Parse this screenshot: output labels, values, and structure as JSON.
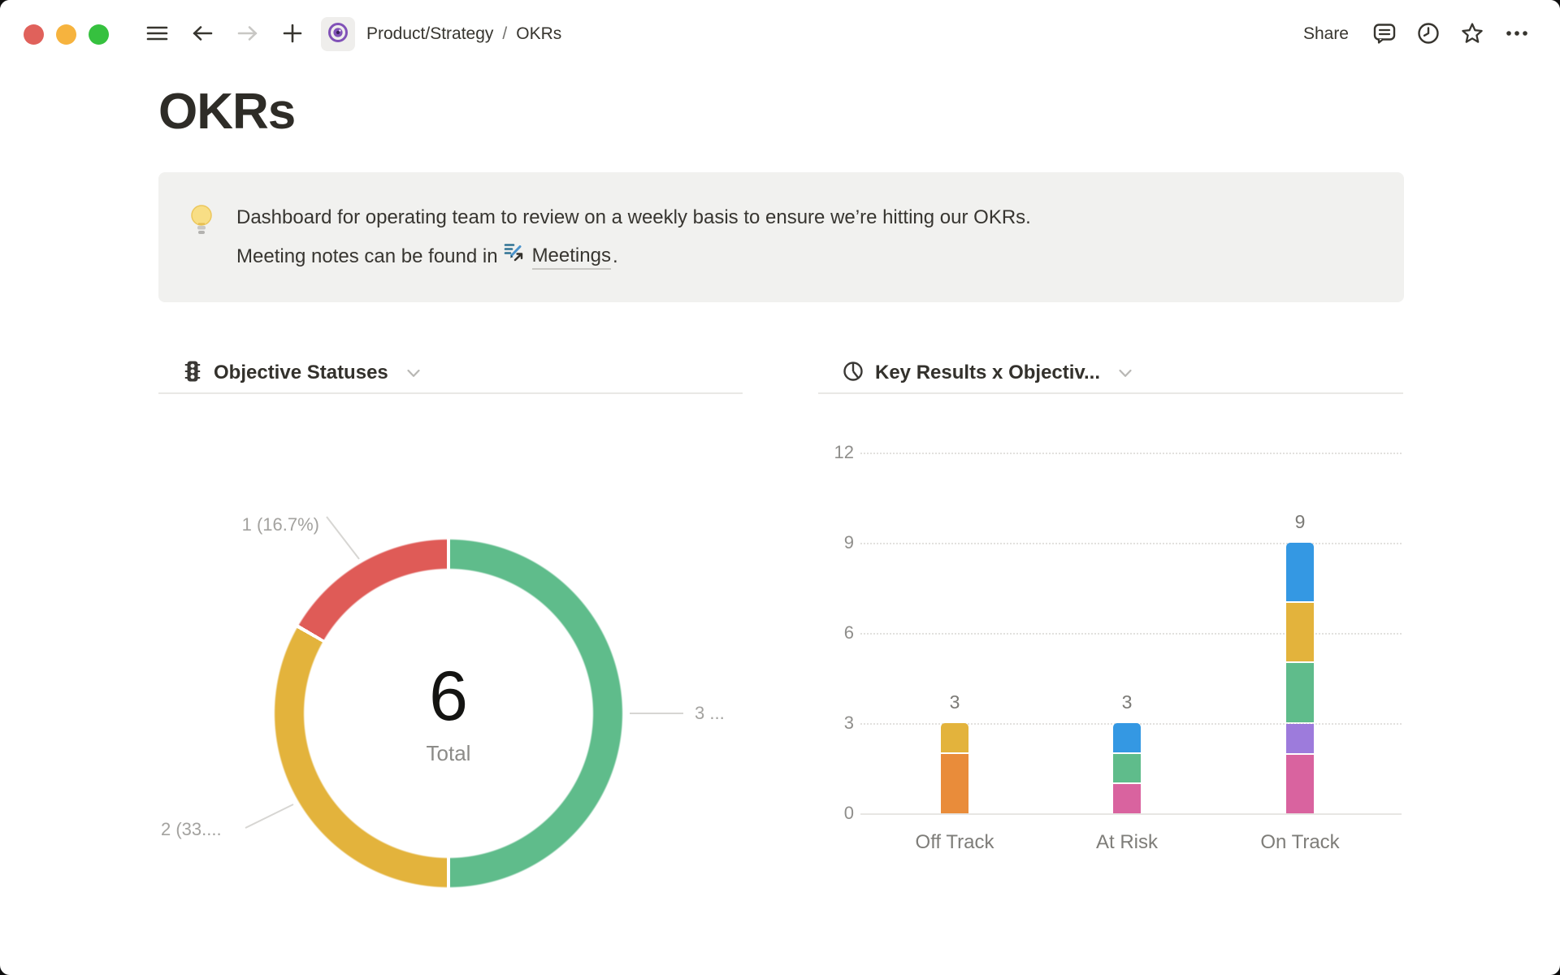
{
  "topbar": {
    "breadcrumb": {
      "parent": "Product/Strategy",
      "separator": "/",
      "current": "OKRs"
    },
    "share_label": "Share"
  },
  "page": {
    "title": "OKRs",
    "callout": {
      "icon": "lightbulb",
      "line1": "Dashboard for operating team to review on a weekly basis to ensure we’re hitting our OKRs.",
      "line2_prefix": "Meeting notes can be found in",
      "link_text": "Meetings",
      "line2_suffix": "."
    }
  },
  "colors": {
    "traffic_red": "#E0615B",
    "traffic_yellow": "#F6B33E",
    "traffic_green": "#36C13F",
    "accent_purple": "#8152B8",
    "gridline": "#E2E1DE"
  },
  "chart_data": [
    {
      "type": "pie",
      "donut": true,
      "title": "Objective Statuses",
      "header_icon": "traffic-light-icon",
      "total_value": "6",
      "total_label": "Total",
      "legend_position": "none",
      "slices": [
        {
          "label": "1 (16.7%)",
          "value": 1,
          "percent": 16.7,
          "color": "#DF5B57",
          "start_deg": 300,
          "end_deg": 360
        },
        {
          "label": "2 (33....",
          "value": 2,
          "percent": 33.3,
          "color": "#E3B33C",
          "start_deg": 180,
          "end_deg": 300
        },
        {
          "label": "3 ...",
          "value": 3,
          "percent": 50.0,
          "color": "#5FBC8B",
          "start_deg": 0,
          "end_deg": 180
        }
      ]
    },
    {
      "type": "bar",
      "stacked": true,
      "title": "Key Results x Objectiv...",
      "header_icon": "pie-chart-icon",
      "categories": [
        "Off Track",
        "At Risk",
        "On Track"
      ],
      "totals": [
        3,
        3,
        9
      ],
      "ylim": [
        0,
        12
      ],
      "y_ticks": [
        0,
        3,
        6,
        9,
        12
      ],
      "grid": "horizontal-dotted",
      "bars": [
        {
          "category": "Off Track",
          "segments": [
            {
              "color": "#E98C3A",
              "value": 2
            },
            {
              "color": "#E3B33C",
              "value": 1
            }
          ]
        },
        {
          "category": "At Risk",
          "segments": [
            {
              "color": "#D9639F",
              "value": 1
            },
            {
              "color": "#5FBC8B",
              "value": 1
            },
            {
              "color": "#3498E3",
              "value": 1
            }
          ]
        },
        {
          "category": "On Track",
          "segments": [
            {
              "color": "#D9639F",
              "value": 2
            },
            {
              "color": "#9D7BDC",
              "value": 1
            },
            {
              "color": "#5FBC8B",
              "value": 2
            },
            {
              "color": "#E3B33C",
              "value": 2
            },
            {
              "color": "#3498E3",
              "value": 2
            }
          ]
        }
      ]
    }
  ]
}
